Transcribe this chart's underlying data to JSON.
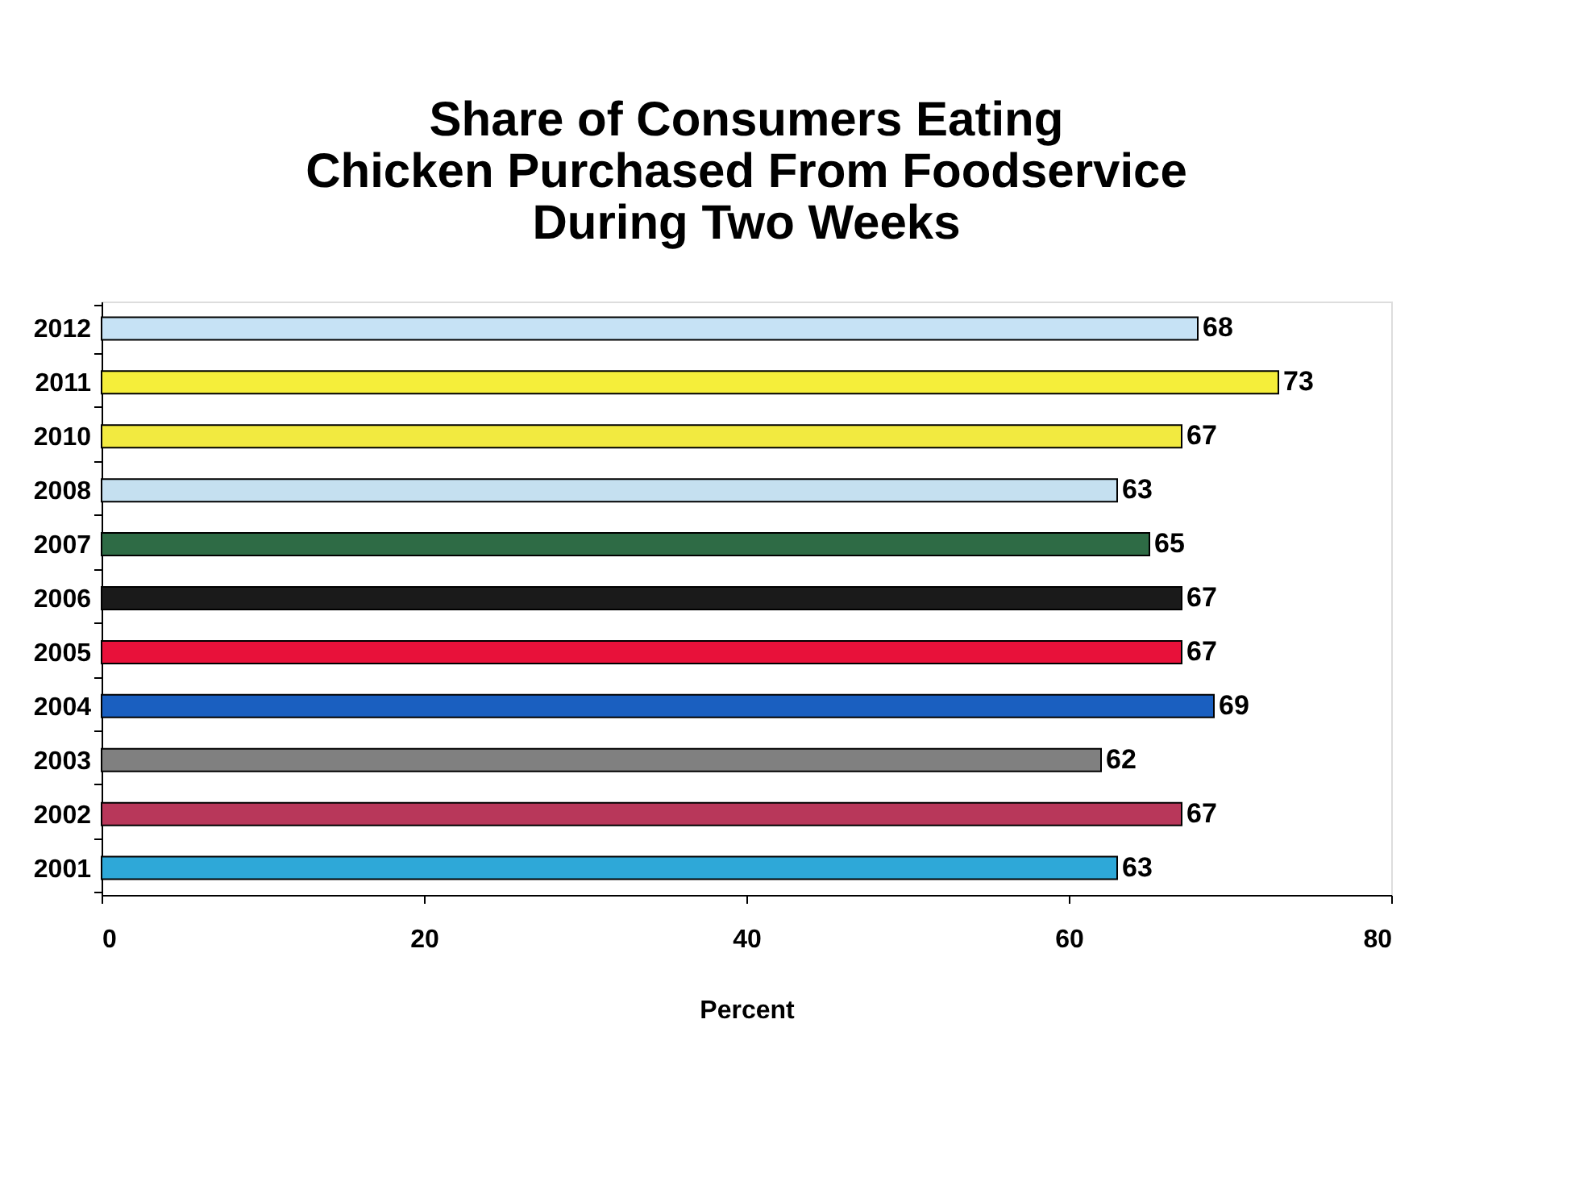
{
  "chart_data": {
    "type": "bar",
    "orientation": "horizontal",
    "title": "Share of Consumers Eating\nChicken Purchased From Foodservice\nDuring Two Weeks",
    "xlabel": "Percent",
    "categories": [
      "2012",
      "2011",
      "2010",
      "2008",
      "2007",
      "2006",
      "2005",
      "2004",
      "2003",
      "2002",
      "2001"
    ],
    "values": [
      68,
      73,
      67,
      63,
      65,
      67,
      67,
      69,
      62,
      67,
      63
    ],
    "colors": [
      "#c6e2f5",
      "#f5ee3a",
      "#f2ea40",
      "#c5e0f0",
      "#2e6b45",
      "#1a1a1a",
      "#e8113a",
      "#1a5fc0",
      "#808080",
      "#b8375a",
      "#2ea8d8"
    ],
    "xlim": [
      0,
      80
    ],
    "xticks": [
      0,
      20,
      40,
      60,
      80
    ],
    "data_labels": true,
    "grid": false,
    "legend": false
  }
}
